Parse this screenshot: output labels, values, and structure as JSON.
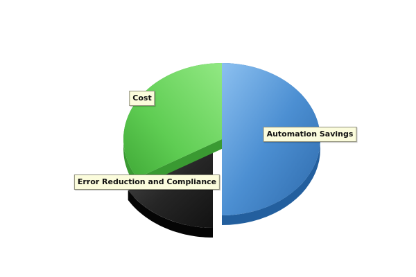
{
  "chart_data": {
    "type": "pie",
    "style": "3d-exploded",
    "title": "",
    "series": [
      {
        "name": "Automation Savings",
        "value": 50,
        "color": "#4a8fd3"
      },
      {
        "name": "Error Reduction and Compliance",
        "value": 16.5,
        "color": "#222222"
      },
      {
        "name": "Cost",
        "value": 33.5,
        "color": "#5fcf55"
      }
    ],
    "labels": [
      "Automation Savings",
      "Error Reduction and Compliance",
      "Cost"
    ],
    "legend": "none",
    "start_angle_deg": 0
  }
}
